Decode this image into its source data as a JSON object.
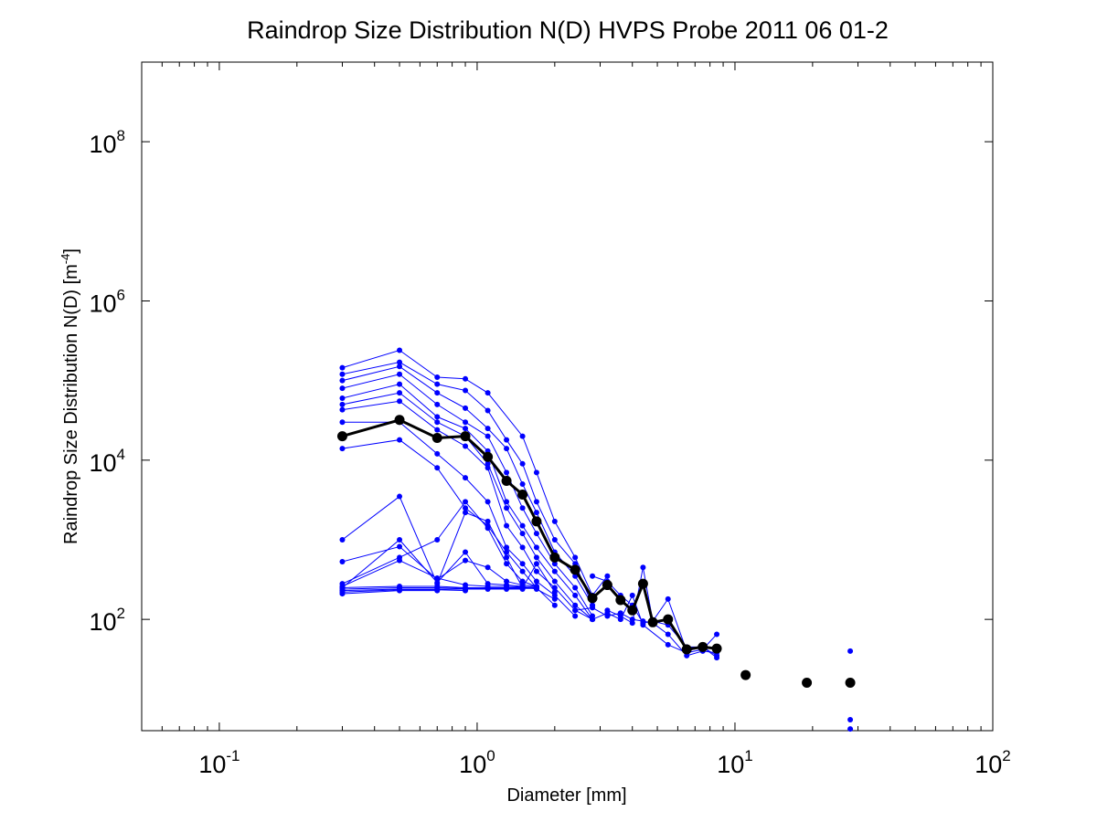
{
  "chart_data": {
    "type": "scatter",
    "title": "Raindrop Size Distribution N(D) HVPS Probe 2011 06 01-2",
    "xlabel": "Diameter [mm]",
    "ylabel": "Raindrop Size Distribution N(D) [m",
    "ylabel_sup": "-4",
    "ylabel_end": "]",
    "xscale": "log",
    "yscale": "log",
    "xlim": [
      0.05,
      100
    ],
    "ylim": [
      4,
      1000000000
    ],
    "grid": false,
    "legend": "none",
    "x_ticks": [
      {
        "base": "10",
        "exp": "-1",
        "value": 0.1
      },
      {
        "base": "10",
        "exp": "0",
        "value": 1
      },
      {
        "base": "10",
        "exp": "1",
        "value": 10
      },
      {
        "base": "10",
        "exp": "2",
        "value": 100
      }
    ],
    "y_ticks": [
      {
        "base": "10",
        "exp": "2",
        "value": 100
      },
      {
        "base": "10",
        "exp": "4",
        "value": 10000
      },
      {
        "base": "10",
        "exp": "6",
        "value": 1000000
      },
      {
        "base": "10",
        "exp": "8",
        "value": 100000000
      }
    ],
    "series": [
      {
        "color": "#0000ff",
        "values": [
          [
            0.3,
            145000
          ],
          [
            0.5,
            240000
          ],
          [
            0.7,
            110000
          ],
          [
            0.9,
            105000
          ],
          [
            1.1,
            70000
          ],
          [
            1.5,
            20000
          ],
          [
            1.7,
            7000
          ],
          [
            2.0,
            1700
          ],
          [
            2.4,
            600
          ],
          [
            2.8,
            200
          ],
          [
            3.2,
            350
          ]
        ]
      },
      {
        "color": "#0000ff",
        "values": [
          [
            0.3,
            120000
          ],
          [
            0.5,
            170000
          ],
          [
            0.7,
            90000
          ],
          [
            0.9,
            75000
          ],
          [
            1.1,
            42000
          ],
          [
            1.3,
            18000
          ],
          [
            1.5,
            9000
          ],
          [
            1.7,
            3000
          ],
          [
            2.0,
            1000
          ],
          [
            2.4,
            500
          ],
          [
            2.8,
            150
          ]
        ]
      },
      {
        "color": "#0000ff",
        "values": [
          [
            0.3,
            100000
          ],
          [
            0.5,
            150000
          ],
          [
            0.7,
            70000
          ],
          [
            0.9,
            45000
          ],
          [
            1.1,
            25000
          ],
          [
            1.3,
            14000
          ],
          [
            1.5,
            5000
          ],
          [
            1.7,
            2200
          ],
          [
            2.0,
            700
          ],
          [
            2.4,
            350
          ],
          [
            2.8,
            150
          ]
        ]
      },
      {
        "color": "#0000ff",
        "values": [
          [
            0.3,
            80000
          ],
          [
            0.5,
            120000
          ],
          [
            0.7,
            50000
          ],
          [
            0.9,
            30000
          ],
          [
            1.1,
            20000
          ],
          [
            1.3,
            7000
          ],
          [
            1.5,
            2500
          ],
          [
            1.7,
            1200
          ],
          [
            2.0,
            500
          ],
          [
            2.4,
            250
          ],
          [
            2.8,
            110
          ]
        ]
      },
      {
        "color": "#0000ff",
        "values": [
          [
            0.3,
            60000
          ],
          [
            0.5,
            90000
          ],
          [
            0.7,
            35000
          ],
          [
            0.9,
            25000
          ],
          [
            1.1,
            13000
          ],
          [
            1.3,
            3000
          ],
          [
            1.5,
            1500
          ],
          [
            1.7,
            800
          ],
          [
            2.0,
            400
          ],
          [
            2.4,
            200
          ],
          [
            2.8,
            100
          ]
        ]
      },
      {
        "color": "#0000ff",
        "values": [
          [
            0.3,
            50000
          ],
          [
            0.5,
            70000
          ],
          [
            0.7,
            30000
          ],
          [
            0.9,
            20000
          ],
          [
            1.1,
            9000
          ],
          [
            1.3,
            2500
          ],
          [
            1.5,
            1200
          ],
          [
            1.7,
            600
          ],
          [
            2.0,
            300
          ],
          [
            2.4,
            150
          ],
          [
            2.8,
            100
          ]
        ]
      },
      {
        "color": "#0000ff",
        "values": [
          [
            0.3,
            43000
          ],
          [
            0.5,
            55000
          ],
          [
            0.7,
            24000
          ],
          [
            0.9,
            15000
          ],
          [
            1.1,
            8000
          ],
          [
            1.3,
            1500
          ],
          [
            1.5,
            800
          ],
          [
            1.7,
            400
          ],
          [
            2.0,
            250
          ],
          [
            2.4,
            130
          ],
          [
            2.8,
            100
          ]
        ]
      },
      {
        "color": "#0000ff",
        "values": [
          [
            0.3,
            30000
          ],
          [
            0.5,
            30000
          ],
          [
            0.7,
            12000
          ],
          [
            0.9,
            6000
          ],
          [
            1.1,
            3000
          ],
          [
            1.3,
            800
          ],
          [
            1.5,
            500
          ],
          [
            1.7,
            300
          ],
          [
            2.0,
            200
          ],
          [
            2.4,
            110
          ]
        ]
      },
      {
        "color": "#0000ff",
        "values": [
          [
            0.3,
            14000
          ],
          [
            0.5,
            18000
          ],
          [
            0.7,
            8000
          ],
          [
            0.9,
            2500
          ],
          [
            1.1,
            1500
          ],
          [
            1.3,
            700
          ],
          [
            1.5,
            400
          ],
          [
            1.7,
            250
          ],
          [
            2.0,
            150
          ]
        ]
      },
      {
        "color": "#0000ff",
        "values": [
          [
            0.3,
            1000
          ],
          [
            0.5,
            3500
          ],
          [
            0.7,
            280
          ],
          [
            0.9,
            2200
          ],
          [
            1.1,
            1700
          ],
          [
            1.3,
            600
          ],
          [
            1.5,
            250
          ],
          [
            1.7,
            500
          ],
          [
            2.0,
            220
          ]
        ]
      },
      {
        "color": "#0000ff",
        "values": [
          [
            0.3,
            250
          ],
          [
            0.5,
            1000
          ],
          [
            0.7,
            290
          ],
          [
            0.9,
            700
          ],
          [
            1.1,
            280
          ],
          [
            1.3,
            270
          ],
          [
            1.5,
            260
          ],
          [
            1.7,
            240
          ],
          [
            2.0,
            180
          ]
        ]
      },
      {
        "color": "#0000ff",
        "values": [
          [
            0.3,
            530
          ],
          [
            0.5,
            820
          ],
          [
            0.7,
            320
          ],
          [
            0.9,
            550
          ],
          [
            1.1,
            450
          ],
          [
            1.3,
            300
          ],
          [
            1.5,
            270
          ],
          [
            1.7,
            260
          ]
        ]
      },
      {
        "color": "#0000ff",
        "values": [
          [
            0.3,
            280
          ],
          [
            0.5,
            600
          ],
          [
            0.7,
            1000
          ],
          [
            0.9,
            3000
          ],
          [
            1.1,
            1400
          ],
          [
            1.3,
            500
          ],
          [
            1.5,
            300
          ],
          [
            1.7,
            260
          ]
        ]
      },
      {
        "color": "#0000ff",
        "values": [
          [
            0.3,
            260
          ],
          [
            0.5,
            550
          ],
          [
            0.7,
            330
          ],
          [
            0.9,
            270
          ],
          [
            1.1,
            260
          ],
          [
            1.3,
            260
          ],
          [
            1.5,
            255
          ],
          [
            1.7,
            255
          ]
        ]
      },
      {
        "color": "#0000ff",
        "values": [
          [
            0.3,
            250
          ],
          [
            0.5,
            260
          ],
          [
            0.7,
            260
          ],
          [
            0.9,
            250
          ],
          [
            1.1,
            250
          ],
          [
            1.3,
            250
          ],
          [
            1.5,
            250
          ],
          [
            1.7,
            250
          ]
        ]
      },
      {
        "color": "#0000ff",
        "values": [
          [
            0.3,
            240
          ],
          [
            0.5,
            250
          ],
          [
            0.7,
            250
          ],
          [
            0.9,
            245
          ],
          [
            1.1,
            245
          ],
          [
            1.3,
            245
          ],
          [
            1.5,
            245
          ],
          [
            1.7,
            245
          ]
        ]
      },
      {
        "color": "#0000ff",
        "values": [
          [
            0.3,
            230
          ],
          [
            0.5,
            240
          ],
          [
            0.7,
            240
          ],
          [
            0.9,
            240
          ],
          [
            1.1,
            240
          ],
          [
            1.3,
            240
          ],
          [
            1.5,
            240
          ]
        ]
      },
      {
        "color": "#0000ff",
        "values": [
          [
            0.3,
            220
          ],
          [
            0.5,
            235
          ],
          [
            0.7,
            235
          ],
          [
            0.9,
            230
          ]
        ]
      },
      {
        "color": "#0000ff",
        "values": [
          [
            0.3,
            210
          ],
          [
            0.5,
            230
          ],
          [
            0.7,
            230
          ]
        ]
      },
      {
        "color": "#0000ff",
        "values": [
          [
            2.4,
            130
          ],
          [
            2.8,
            140
          ],
          [
            3.2,
            110
          ],
          [
            3.6,
            120
          ],
          [
            4.0,
            100
          ],
          [
            4.4,
            95
          ],
          [
            4.8,
            90
          ],
          [
            5.5,
            65
          ],
          [
            6.5,
            35
          ],
          [
            7.5,
            40
          ],
          [
            8.5,
            38
          ]
        ]
      },
      {
        "color": "#0000ff",
        "values": [
          [
            2.8,
            350
          ],
          [
            3.2,
            300
          ],
          [
            3.6,
            200
          ],
          [
            4.0,
            150
          ],
          [
            4.4,
            90
          ],
          [
            4.8,
            95
          ],
          [
            5.5,
            180
          ],
          [
            6.5,
            40
          ],
          [
            7.5,
            45
          ],
          [
            8.5,
            35
          ]
        ]
      },
      {
        "color": "#0000ff",
        "values": [
          [
            3.2,
            130
          ],
          [
            3.6,
            110
          ],
          [
            4.0,
            90
          ],
          [
            4.4,
            450
          ],
          [
            4.8,
            95
          ],
          [
            5.5,
            85
          ],
          [
            6.5,
            45
          ],
          [
            7.5,
            45
          ],
          [
            8.5,
            33
          ]
        ]
      },
      {
        "color": "#0000ff",
        "values": [
          [
            2.8,
            100
          ],
          [
            3.2,
            120
          ],
          [
            3.6,
            100
          ],
          [
            4.0,
            200
          ],
          [
            4.4,
            85
          ],
          [
            5.5,
            48
          ],
          [
            6.5,
            38
          ],
          [
            7.5,
            42
          ],
          [
            8.5,
            65
          ]
        ]
      }
    ],
    "loose_points": [
      [
        28,
        40
      ],
      [
        28,
        5.5
      ],
      [
        28,
        4.2
      ]
    ],
    "mean_series": {
      "color": "#000000",
      "values": [
        [
          0.3,
          20000
        ],
        [
          0.5,
          32000
        ],
        [
          0.7,
          19000
        ],
        [
          0.9,
          20000
        ],
        [
          1.1,
          11000
        ],
        [
          1.3,
          5500
        ],
        [
          1.5,
          3700
        ],
        [
          1.7,
          1700
        ],
        [
          2.0,
          600
        ],
        [
          2.4,
          420
        ],
        [
          2.8,
          185
        ],
        [
          3.2,
          270
        ],
        [
          3.6,
          175
        ],
        [
          4.0,
          130
        ],
        [
          4.4,
          280
        ],
        [
          4.8,
          92
        ],
        [
          5.5,
          100
        ],
        [
          6.5,
          42
        ],
        [
          7.5,
          45
        ],
        [
          8.5,
          43
        ]
      ]
    },
    "mean_extra_points": [
      [
        11,
        20
      ],
      [
        19,
        16
      ],
      [
        28,
        16
      ]
    ]
  }
}
